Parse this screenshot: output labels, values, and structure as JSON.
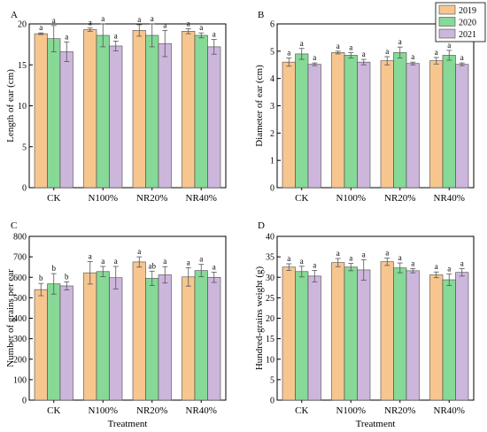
{
  "colors": {
    "2019": "#f7c68f",
    "2020": "#86d996",
    "2021": "#cdb6dc"
  },
  "legend": {
    "entries": [
      "2019",
      "2020",
      "2021"
    ],
    "placement": "top-right"
  },
  "shared_xlabel": "Treatment",
  "chart_data": [
    {
      "panel_letter": "A",
      "type": "bar",
      "title": "",
      "xlabel": "",
      "ylabel": "Length of ear (cm)",
      "ylim": [
        0,
        20
      ],
      "yticks": [
        0,
        5,
        10,
        15,
        20
      ],
      "categories": [
        "CK",
        "N100%",
        "NR20%",
        "NR40%"
      ],
      "series": [
        {
          "name": "2019",
          "values": [
            18.8,
            19.3,
            19.2,
            19.1
          ],
          "errors": [
            0.1,
            0.2,
            0.7,
            0.3
          ],
          "letters": [
            "a",
            "a",
            "a",
            "a"
          ]
        },
        {
          "name": "2020",
          "values": [
            18.2,
            18.6,
            18.6,
            18.6
          ],
          "errors": [
            1.6,
            1.4,
            1.4,
            0.3
          ],
          "letters": [
            "a",
            "a",
            "a",
            "a"
          ]
        },
        {
          "name": "2021",
          "values": [
            16.6,
            17.3,
            17.6,
            17.2
          ],
          "errors": [
            1.2,
            0.6,
            1.6,
            0.9
          ],
          "letters": [
            "a",
            "a",
            "a",
            "a"
          ]
        }
      ]
    },
    {
      "panel_letter": "B",
      "type": "bar",
      "title": "",
      "xlabel": "",
      "ylabel": "Diameter of ear (cm)",
      "ylim": [
        0,
        6
      ],
      "yticks": [
        0,
        1,
        2,
        3,
        4,
        5,
        6
      ],
      "categories": [
        "CK",
        "N100%",
        "NR20%",
        "NR40%"
      ],
      "series": [
        {
          "name": "2019",
          "values": [
            4.6,
            4.95,
            4.65,
            4.65
          ],
          "errors": [
            0.15,
            0.05,
            0.15,
            0.12
          ],
          "letters": [
            "a",
            "a",
            "a",
            "a"
          ]
        },
        {
          "name": "2020",
          "values": [
            4.9,
            4.85,
            4.95,
            4.85
          ],
          "errors": [
            0.2,
            0.1,
            0.2,
            0.18
          ],
          "letters": [
            "a",
            "a",
            "a",
            "a"
          ]
        },
        {
          "name": "2021",
          "values": [
            4.52,
            4.6,
            4.55,
            4.52
          ],
          "errors": [
            0.05,
            0.1,
            0.05,
            0.05
          ],
          "letters": [
            "a",
            "a",
            "a",
            "a"
          ]
        }
      ]
    },
    {
      "panel_letter": "C",
      "type": "bar",
      "title": "",
      "xlabel": "Treatment",
      "ylabel": "Number of grains per ear",
      "ylim": [
        0,
        800
      ],
      "yticks": [
        0,
        100,
        200,
        300,
        400,
        500,
        600,
        700,
        800
      ],
      "categories": [
        "CK",
        "N100%",
        "NR20%",
        "NR40%"
      ],
      "series": [
        {
          "name": "2019",
          "values": [
            540,
            622,
            675,
            602
          ],
          "errors": [
            30,
            55,
            25,
            45
          ],
          "letters": [
            "b",
            "a",
            "a",
            "a"
          ]
        },
        {
          "name": "2020",
          "values": [
            568,
            628,
            595,
            633
          ],
          "errors": [
            50,
            25,
            35,
            30
          ],
          "letters": [
            "b",
            "a",
            "ab",
            "a"
          ]
        },
        {
          "name": "2021",
          "values": [
            558,
            598,
            612,
            600
          ],
          "errors": [
            20,
            55,
            40,
            25
          ],
          "letters": [
            "b",
            "a",
            "a",
            "a"
          ]
        }
      ]
    },
    {
      "panel_letter": "D",
      "type": "bar",
      "title": "",
      "xlabel": "Treatment",
      "ylabel": "Hundred-grains weight (g)",
      "ylim": [
        0,
        40
      ],
      "yticks": [
        0,
        5,
        10,
        15,
        20,
        25,
        30,
        35,
        40
      ],
      "categories": [
        "CK",
        "N100%",
        "NR20%",
        "NR40%"
      ],
      "series": [
        {
          "name": "2019",
          "values": [
            32.5,
            33.6,
            33.8,
            30.6
          ],
          "errors": [
            0.8,
            1.0,
            0.9,
            0.7
          ],
          "letters": [
            "a",
            "a",
            "a",
            "a"
          ]
        },
        {
          "name": "2020",
          "values": [
            31.4,
            32.5,
            32.3,
            29.4
          ],
          "errors": [
            1.3,
            0.9,
            1.2,
            1.4
          ],
          "letters": [
            "a",
            "a",
            "a",
            "a"
          ]
        },
        {
          "name": "2021",
          "values": [
            30.3,
            31.8,
            31.6,
            31.2
          ],
          "errors": [
            1.4,
            2.5,
            0.5,
            0.9
          ],
          "letters": [
            "a",
            "a",
            "a",
            "a"
          ]
        }
      ]
    }
  ]
}
